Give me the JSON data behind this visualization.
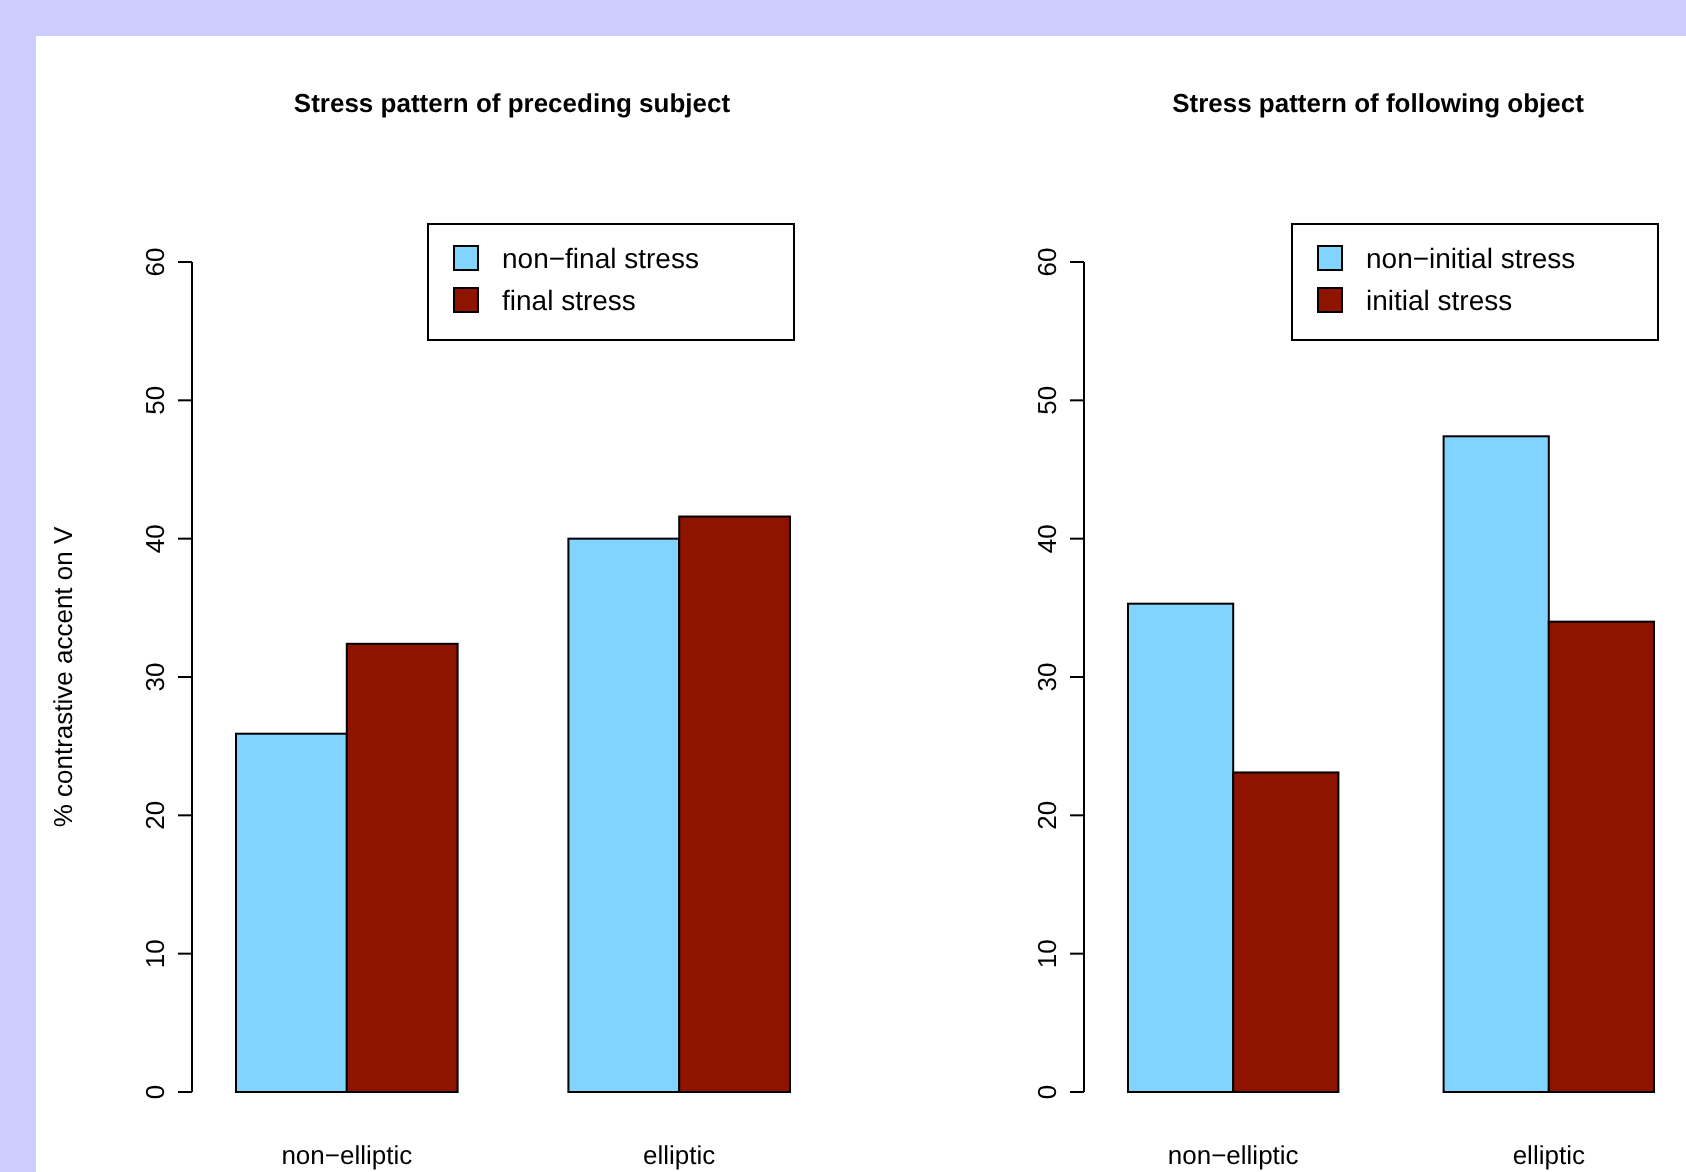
{
  "chart_data": [
    {
      "type": "bar",
      "title": "Stress pattern of preceding subject",
      "ylabel": "% contrastive accent on V",
      "categories": [
        "non−elliptic",
        "elliptic"
      ],
      "series": [
        {
          "name": "non−final stress",
          "color": "#80d4ff",
          "values": [
            25.9,
            40.0
          ]
        },
        {
          "name": "final stress",
          "color": "#8f1400",
          "values": [
            32.4,
            41.6
          ]
        }
      ],
      "ylim": [
        0,
        60
      ],
      "yticks": [
        0,
        10,
        20,
        30,
        40,
        50,
        60
      ],
      "legend": "top right"
    },
    {
      "type": "bar",
      "title": "Stress pattern of following object",
      "categories": [
        "non−elliptic",
        "elliptic"
      ],
      "series": [
        {
          "name": "non−initial stress",
          "color": "#80d4ff",
          "values": [
            35.3,
            47.4
          ]
        },
        {
          "name": "initial stress",
          "color": "#8f1400",
          "values": [
            23.1,
            34.0
          ]
        }
      ],
      "ylim": [
        0,
        60
      ],
      "yticks": [
        0,
        10,
        20,
        30,
        40,
        50,
        60
      ],
      "legend": "top right"
    }
  ]
}
